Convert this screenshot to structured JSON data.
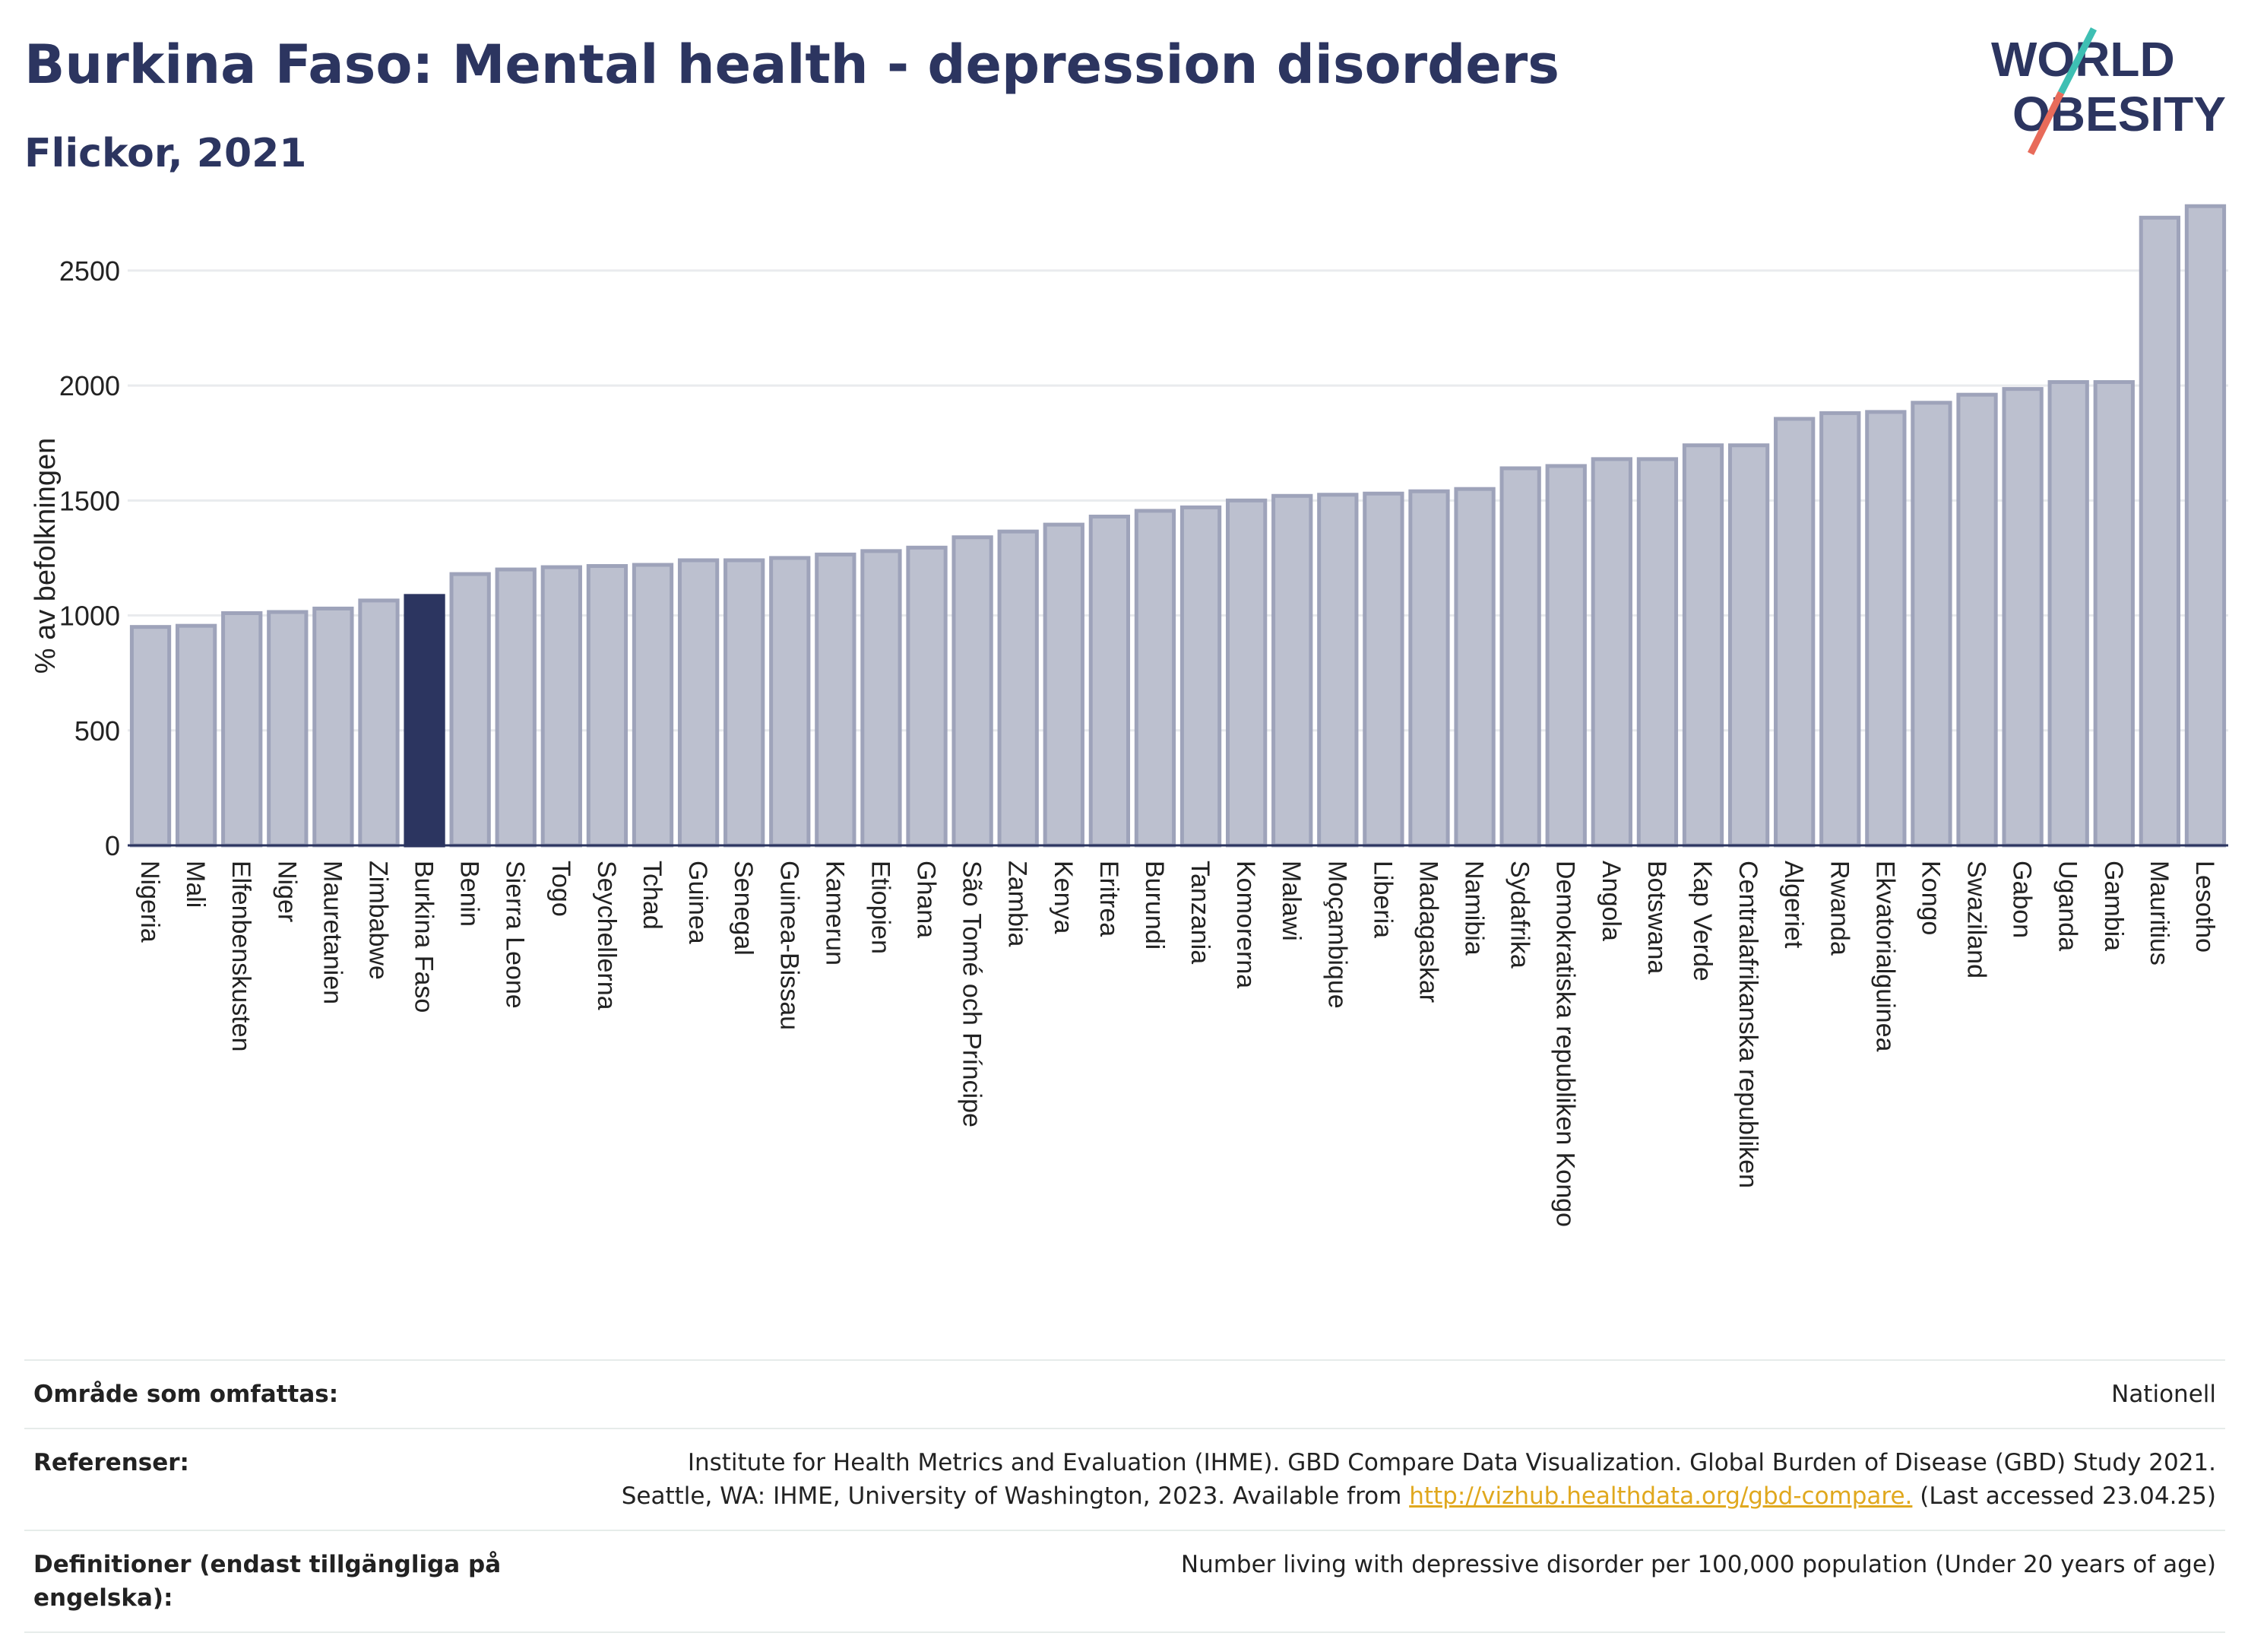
{
  "header": {
    "title": "Burkina Faso: Mental health - depression disorders",
    "subtitle": "Flickor, 2021"
  },
  "logo": {
    "line1": "WORLD",
    "line2": "OBESITY"
  },
  "colors": {
    "bar": "#bcc0cf",
    "bar_stroke": "#9ea3ba",
    "highlight": "#2c3560",
    "text_dark": "#2c3560",
    "link": "#e0a81e",
    "grid": "#e9ebee"
  },
  "chart_data": {
    "type": "bar",
    "ylabel": "% av befolkningen",
    "ylim": [
      0,
      2850
    ],
    "yticks": [
      0,
      500,
      1000,
      1500,
      2000,
      2500
    ],
    "grid": true,
    "highlight": "Burkina Faso",
    "categories": [
      "Nigeria",
      "Mali",
      "Elfenbenskusten",
      "Niger",
      "Mauretanien",
      "Zimbabwe",
      "Burkina Faso",
      "Benin",
      "Sierra Leone",
      "Togo",
      "Seychellerna",
      "Tchad",
      "Guinea",
      "Senegal",
      "Guinea-Bissau",
      "Kamerun",
      "Etiopien",
      "Ghana",
      "São Tomé och Príncipe",
      "Zambia",
      "Kenya",
      "Eritrea",
      "Burundi",
      "Tanzania",
      "Komorerna",
      "Malawi",
      "Moçambique",
      "Liberia",
      "Madagaskar",
      "Namibia",
      "Sydafrika",
      "Demokratiska republiken Kongo",
      "Angola",
      "Botswana",
      "Kap Verde",
      "Centralafrikanska republiken",
      "Algeriet",
      "Rwanda",
      "Ekvatorialguinea",
      "Kongo",
      "Swaziland",
      "Gabon",
      "Uganda",
      "Gambia",
      "Mauritius",
      "Lesotho"
    ],
    "values": [
      950,
      955,
      1010,
      1015,
      1030,
      1065,
      1085,
      1180,
      1200,
      1210,
      1215,
      1220,
      1240,
      1240,
      1250,
      1265,
      1280,
      1295,
      1340,
      1365,
      1395,
      1430,
      1455,
      1470,
      1500,
      1520,
      1525,
      1530,
      1540,
      1550,
      1640,
      1650,
      1680,
      1680,
      1740,
      1740,
      1855,
      1880,
      1885,
      1925,
      1960,
      1985,
      2015,
      2015,
      2730,
      2780
    ]
  },
  "meta": {
    "rows": [
      {
        "label": "Område som omfattas:",
        "value": "Nationell"
      },
      {
        "label": "Referenser:",
        "value_line1": "Institute for Health Metrics and Evaluation (IHME). GBD Compare Data Visualization. Global Burden of Disease (GBD) Study 2021.",
        "value_line2_pre": "Seattle, WA: IHME, University of Washington, 2023. Available from ",
        "link": "http://vizhub.healthdata.org/gbd-compare.",
        "value_line2_post": " (Last accessed 23.04.25)"
      },
      {
        "label": "Definitioner (endast tillgängliga på engelska):",
        "value": "Number living with depressive disorder per 100,000 population (Under 20 years of age)"
      }
    ]
  }
}
